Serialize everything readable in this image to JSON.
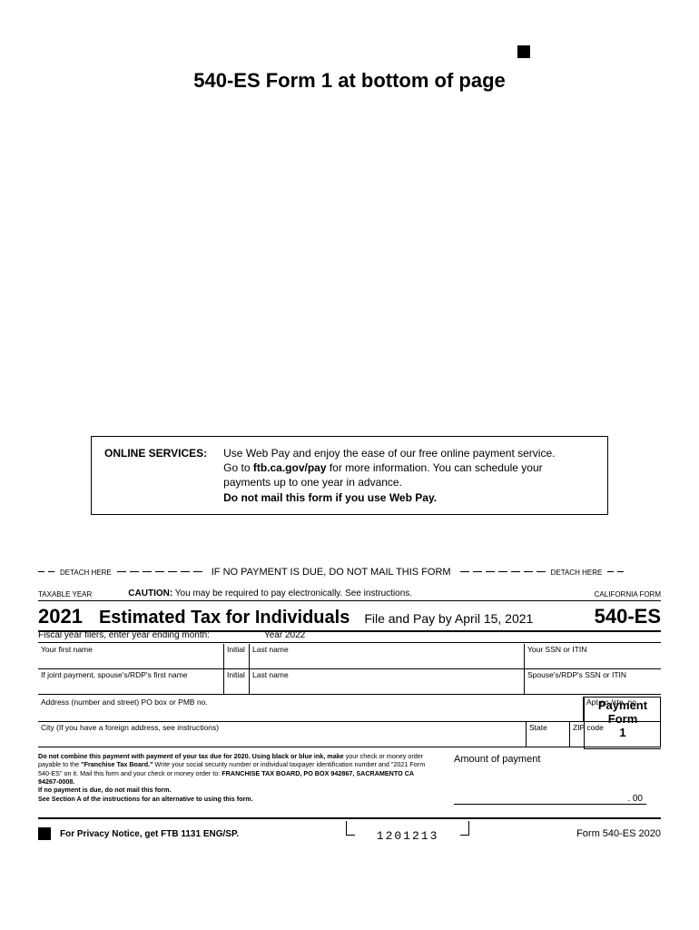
{
  "page_title": "540-ES Form 1 at bottom of page",
  "online_services": {
    "label": "ONLINE SERVICES:",
    "line1a": "Use Web Pay and enjoy the ease of our free online payment service.",
    "line2a": "Go to ",
    "line2b": "ftb.ca.gov/pay",
    "line2c": " for more information. You can schedule your",
    "line3": "payments up to one year in advance.",
    "line4": "Do not mail this form if you use Web Pay."
  },
  "detach": {
    "left_label": "DETACH HERE",
    "center": "IF NO PAYMENT IS DUE, DO NOT MAIL THIS FORM",
    "right_label": "DETACH HERE"
  },
  "caution": {
    "taxable_year": "TAXABLE YEAR",
    "bold": "CAUTION:",
    "text": " You may be required to pay electronically. See instructions.",
    "calif": "CALIFORNIA FORM"
  },
  "title": {
    "year": "2021",
    "name": "Estimated Tax for Individuals",
    "due": "File and Pay by April 15, 2021",
    "form": "540-ES"
  },
  "fiscal": {
    "label": "Fiscal year filers, enter year ending month:",
    "year_label": "Year 2022"
  },
  "names": {
    "first_label": "Your first name",
    "initial_label": "Initial",
    "last_label": "Last name",
    "ssn_label": "Your SSN or ITIN",
    "spouse_first": "If joint payment, spouse's/RDP's first name",
    "spouse_ssn": "Spouse's/RDP's SSN or ITIN"
  },
  "address": {
    "addr_label": "Address (number and street) PO box or PMB no.",
    "apt_label": "Apt no./ste. no.",
    "city_label": "City (If you have a foreign address, see instructions)",
    "state_label": "State",
    "zip_label": "ZIP code"
  },
  "payment_box": {
    "l1": "Payment",
    "l2": "Form",
    "l3": "1"
  },
  "fineprint": {
    "p1a": "Do not combine this payment with payment of your tax due for 2020. Using black or blue ink, make ",
    "p1b": "your check or money order payable to the ",
    "p1c": "\"Franchise Tax Board.\"",
    "p1d": " Write your social security number or individual taxpayer identification number and \"2021 Form 540-ES\" on it. Mail this form and your check or money order to: ",
    "p1e": "FRANCHISE TAX BOARD, PO BOX 942867, SACRAMENTO CA 94267-0008.",
    "p2": "If no payment is due, do not mail this form.",
    "p3": "See Section A of the instructions for an alternative to using this form."
  },
  "amount": {
    "label": "Amount of payment",
    "cents": ". 00"
  },
  "footer": {
    "privacy": "For Privacy Notice, get FTB 1131 ENG/SP.",
    "doc_id": "1201213",
    "form_ver": "Form 540-ES 2020"
  }
}
